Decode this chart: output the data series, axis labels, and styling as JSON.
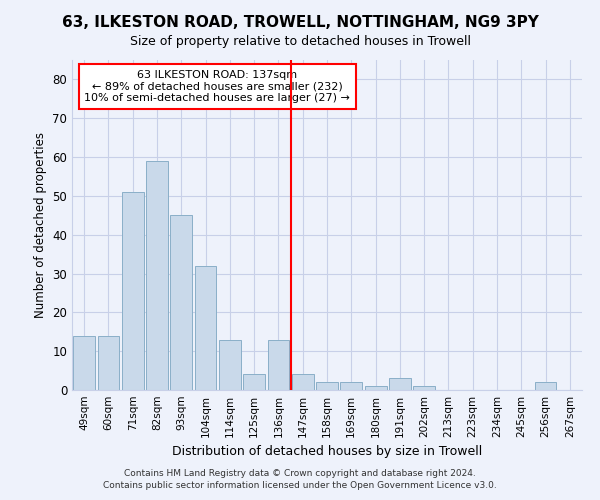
{
  "title1": "63, ILKESTON ROAD, TROWELL, NOTTINGHAM, NG9 3PY",
  "title2": "Size of property relative to detached houses in Trowell",
  "xlabel": "Distribution of detached houses by size in Trowell",
  "ylabel": "Number of detached properties",
  "categories": [
    "49sqm",
    "60sqm",
    "71sqm",
    "82sqm",
    "93sqm",
    "104sqm",
    "114sqm",
    "125sqm",
    "136sqm",
    "147sqm",
    "158sqm",
    "169sqm",
    "180sqm",
    "191sqm",
    "202sqm",
    "213sqm",
    "223sqm",
    "234sqm",
    "245sqm",
    "256sqm",
    "267sqm"
  ],
  "bar_heights": [
    14,
    14,
    51,
    59,
    45,
    32,
    13,
    4,
    13,
    4,
    2,
    2,
    1,
    3,
    1,
    0,
    0,
    0,
    0,
    2,
    0
  ],
  "bar_color": "#c9d9ea",
  "bar_edge_color": "#8aafc8",
  "annotation_line1": "63 ILKESTON ROAD: 137sqm",
  "annotation_line2": "← 89% of detached houses are smaller (232)",
  "annotation_line3": "10% of semi-detached houses are larger (27) →",
  "annotation_box_color": "white",
  "annotation_box_edge": "red",
  "vline_color": "red",
  "ylim": [
    0,
    85
  ],
  "yticks": [
    0,
    10,
    20,
    30,
    40,
    50,
    60,
    70,
    80
  ],
  "footer1": "Contains HM Land Registry data © Crown copyright and database right 2024.",
  "footer2": "Contains public sector information licensed under the Open Government Licence v3.0.",
  "bg_color": "#eef2fb",
  "grid_color": "#c8d0e8",
  "title1_fontsize": 11,
  "title2_fontsize": 9
}
